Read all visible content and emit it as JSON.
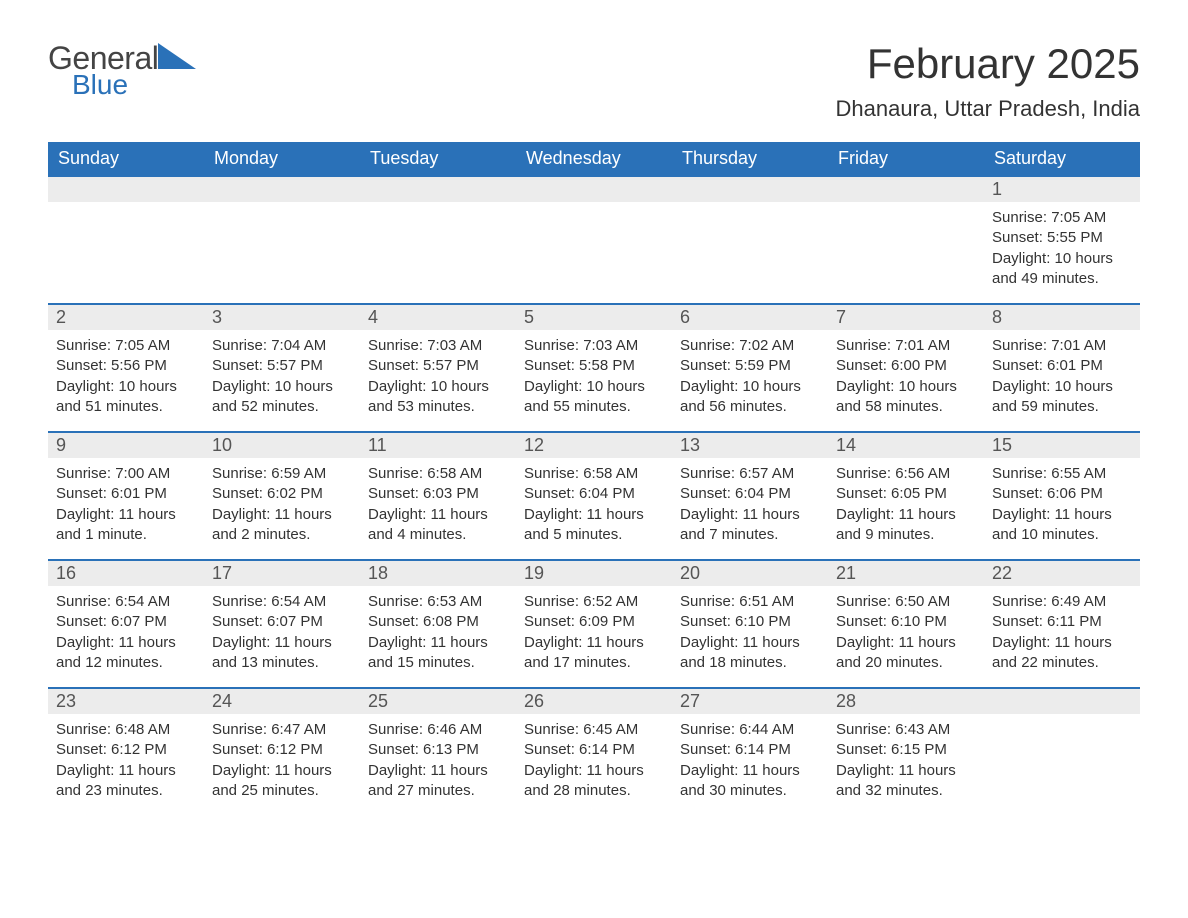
{
  "logo": {
    "text1": "General",
    "text2": "Blue",
    "tri_color": "#2a71b8"
  },
  "title": "February 2025",
  "location": "Dhanaura, Uttar Pradesh, India",
  "colors": {
    "header_bg": "#2a71b8",
    "header_text": "#ffffff",
    "daynum_bg": "#ececec",
    "row_border": "#2a71b8",
    "body_text": "#333333"
  },
  "weekdays": [
    "Sunday",
    "Monday",
    "Tuesday",
    "Wednesday",
    "Thursday",
    "Friday",
    "Saturday"
  ],
  "first_weekday_index": 6,
  "days": [
    {
      "n": 1,
      "sunrise": "7:05 AM",
      "sunset": "5:55 PM",
      "daylight": "10 hours and 49 minutes."
    },
    {
      "n": 2,
      "sunrise": "7:05 AM",
      "sunset": "5:56 PM",
      "daylight": "10 hours and 51 minutes."
    },
    {
      "n": 3,
      "sunrise": "7:04 AM",
      "sunset": "5:57 PM",
      "daylight": "10 hours and 52 minutes."
    },
    {
      "n": 4,
      "sunrise": "7:03 AM",
      "sunset": "5:57 PM",
      "daylight": "10 hours and 53 minutes."
    },
    {
      "n": 5,
      "sunrise": "7:03 AM",
      "sunset": "5:58 PM",
      "daylight": "10 hours and 55 minutes."
    },
    {
      "n": 6,
      "sunrise": "7:02 AM",
      "sunset": "5:59 PM",
      "daylight": "10 hours and 56 minutes."
    },
    {
      "n": 7,
      "sunrise": "7:01 AM",
      "sunset": "6:00 PM",
      "daylight": "10 hours and 58 minutes."
    },
    {
      "n": 8,
      "sunrise": "7:01 AM",
      "sunset": "6:01 PM",
      "daylight": "10 hours and 59 minutes."
    },
    {
      "n": 9,
      "sunrise": "7:00 AM",
      "sunset": "6:01 PM",
      "daylight": "11 hours and 1 minute."
    },
    {
      "n": 10,
      "sunrise": "6:59 AM",
      "sunset": "6:02 PM",
      "daylight": "11 hours and 2 minutes."
    },
    {
      "n": 11,
      "sunrise": "6:58 AM",
      "sunset": "6:03 PM",
      "daylight": "11 hours and 4 minutes."
    },
    {
      "n": 12,
      "sunrise": "6:58 AM",
      "sunset": "6:04 PM",
      "daylight": "11 hours and 5 minutes."
    },
    {
      "n": 13,
      "sunrise": "6:57 AM",
      "sunset": "6:04 PM",
      "daylight": "11 hours and 7 minutes."
    },
    {
      "n": 14,
      "sunrise": "6:56 AM",
      "sunset": "6:05 PM",
      "daylight": "11 hours and 9 minutes."
    },
    {
      "n": 15,
      "sunrise": "6:55 AM",
      "sunset": "6:06 PM",
      "daylight": "11 hours and 10 minutes."
    },
    {
      "n": 16,
      "sunrise": "6:54 AM",
      "sunset": "6:07 PM",
      "daylight": "11 hours and 12 minutes."
    },
    {
      "n": 17,
      "sunrise": "6:54 AM",
      "sunset": "6:07 PM",
      "daylight": "11 hours and 13 minutes."
    },
    {
      "n": 18,
      "sunrise": "6:53 AM",
      "sunset": "6:08 PM",
      "daylight": "11 hours and 15 minutes."
    },
    {
      "n": 19,
      "sunrise": "6:52 AM",
      "sunset": "6:09 PM",
      "daylight": "11 hours and 17 minutes."
    },
    {
      "n": 20,
      "sunrise": "6:51 AM",
      "sunset": "6:10 PM",
      "daylight": "11 hours and 18 minutes."
    },
    {
      "n": 21,
      "sunrise": "6:50 AM",
      "sunset": "6:10 PM",
      "daylight": "11 hours and 20 minutes."
    },
    {
      "n": 22,
      "sunrise": "6:49 AM",
      "sunset": "6:11 PM",
      "daylight": "11 hours and 22 minutes."
    },
    {
      "n": 23,
      "sunrise": "6:48 AM",
      "sunset": "6:12 PM",
      "daylight": "11 hours and 23 minutes."
    },
    {
      "n": 24,
      "sunrise": "6:47 AM",
      "sunset": "6:12 PM",
      "daylight": "11 hours and 25 minutes."
    },
    {
      "n": 25,
      "sunrise": "6:46 AM",
      "sunset": "6:13 PM",
      "daylight": "11 hours and 27 minutes."
    },
    {
      "n": 26,
      "sunrise": "6:45 AM",
      "sunset": "6:14 PM",
      "daylight": "11 hours and 28 minutes."
    },
    {
      "n": 27,
      "sunrise": "6:44 AM",
      "sunset": "6:14 PM",
      "daylight": "11 hours and 30 minutes."
    },
    {
      "n": 28,
      "sunrise": "6:43 AM",
      "sunset": "6:15 PM",
      "daylight": "11 hours and 32 minutes."
    }
  ],
  "labels": {
    "sunrise": "Sunrise:",
    "sunset": "Sunset:",
    "daylight": "Daylight:"
  }
}
